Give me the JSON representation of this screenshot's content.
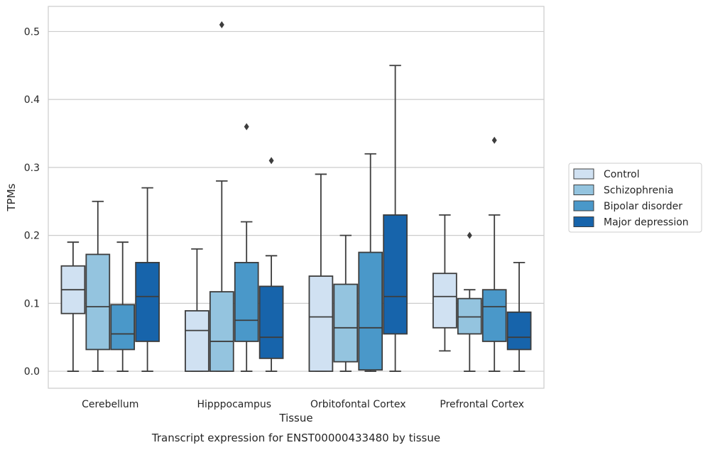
{
  "chart_data": {
    "type": "box",
    "caption": "Transcript expression for ENST00000433480 by tissue",
    "xlabel": "Tissue",
    "ylabel": "TPMs",
    "ylim": [
      -0.025,
      0.537
    ],
    "yticks": [
      0.0,
      0.1,
      0.2,
      0.3,
      0.4,
      0.5
    ],
    "ytick_labels": [
      "0.0",
      "0.1",
      "0.2",
      "0.3",
      "0.4",
      "0.5"
    ],
    "grid": true,
    "legend_position": "right",
    "categories": [
      "Cerebellum",
      "Hipppocampus",
      "Orbitofontal Cortex",
      "Prefrontal Cortex"
    ],
    "series": [
      {
        "name": "Control",
        "color": "#d0e1f2",
        "boxes": [
          {
            "whislo": 0.0,
            "q1": 0.085,
            "med": 0.12,
            "q3": 0.155,
            "whishi": 0.19,
            "fliers": []
          },
          {
            "whislo": 0.0,
            "q1": 0.0,
            "med": 0.06,
            "q3": 0.089,
            "whishi": 0.18,
            "fliers": []
          },
          {
            "whislo": 0.0,
            "q1": 0.0,
            "med": 0.08,
            "q3": 0.14,
            "whishi": 0.29,
            "fliers": []
          },
          {
            "whislo": 0.03,
            "q1": 0.064,
            "med": 0.11,
            "q3": 0.144,
            "whishi": 0.23,
            "fliers": []
          }
        ]
      },
      {
        "name": "Schizophrenia",
        "color": "#94c4df",
        "boxes": [
          {
            "whislo": 0.0,
            "q1": 0.032,
            "med": 0.095,
            "q3": 0.172,
            "whishi": 0.25,
            "fliers": []
          },
          {
            "whislo": 0.0,
            "q1": 0.0,
            "med": 0.044,
            "q3": 0.117,
            "whishi": 0.28,
            "fliers": [
              0.51
            ]
          },
          {
            "whislo": 0.0,
            "q1": 0.014,
            "med": 0.064,
            "q3": 0.128,
            "whishi": 0.2,
            "fliers": []
          },
          {
            "whislo": 0.0,
            "q1": 0.055,
            "med": 0.08,
            "q3": 0.107,
            "whishi": 0.12,
            "fliers": [
              0.2
            ]
          }
        ]
      },
      {
        "name": "Bipolar disorder",
        "color": "#4a98c9",
        "boxes": [
          {
            "whislo": 0.0,
            "q1": 0.032,
            "med": 0.055,
            "q3": 0.098,
            "whishi": 0.19,
            "fliers": []
          },
          {
            "whislo": 0.0,
            "q1": 0.044,
            "med": 0.075,
            "q3": 0.16,
            "whishi": 0.22,
            "fliers": [
              0.36
            ]
          },
          {
            "whislo": 0.0,
            "q1": 0.002,
            "med": 0.064,
            "q3": 0.175,
            "whishi": 0.32,
            "fliers": []
          },
          {
            "whislo": 0.0,
            "q1": 0.044,
            "med": 0.095,
            "q3": 0.12,
            "whishi": 0.23,
            "fliers": [
              0.34
            ]
          }
        ]
      },
      {
        "name": "Major depression",
        "color": "#1764ab",
        "boxes": [
          {
            "whislo": 0.0,
            "q1": 0.044,
            "med": 0.11,
            "q3": 0.16,
            "whishi": 0.27,
            "fliers": []
          },
          {
            "whislo": 0.0,
            "q1": 0.019,
            "med": 0.05,
            "q3": 0.125,
            "whishi": 0.17,
            "fliers": [
              0.31
            ]
          },
          {
            "whislo": 0.0,
            "q1": 0.055,
            "med": 0.11,
            "q3": 0.23,
            "whishi": 0.45,
            "fliers": []
          },
          {
            "whislo": 0.0,
            "q1": 0.032,
            "med": 0.05,
            "q3": 0.087,
            "whishi": 0.16,
            "fliers": []
          }
        ]
      }
    ]
  }
}
